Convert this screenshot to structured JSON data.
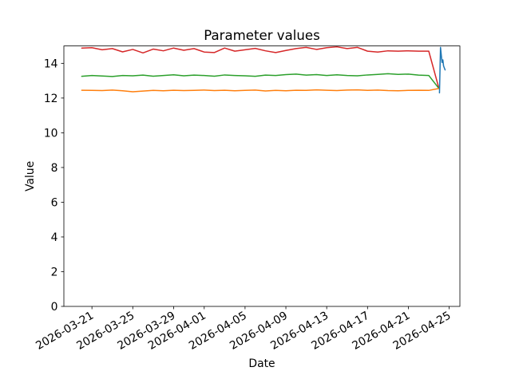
{
  "figure": {
    "background_color": "#ffffff",
    "plot_background_color": "#ffffff",
    "spine_color": "#000000"
  },
  "chart_data": {
    "type": "line",
    "title": "Parameter values",
    "xlabel": "Date",
    "ylabel": "Value",
    "grid": false,
    "legend": "none",
    "start_date": "2026-03-20",
    "x_unit": "days since 2026-03-20",
    "xlim_days": [
      -1.75,
      37.05
    ],
    "ylim": [
      0,
      15
    ],
    "y_ticks": [
      0,
      2,
      4,
      6,
      8,
      10,
      12,
      14
    ],
    "x_ticks": [
      {
        "day": 1,
        "label": "2026-03-21"
      },
      {
        "day": 5,
        "label": "2026-03-25"
      },
      {
        "day": 9,
        "label": "2026-03-29"
      },
      {
        "day": 12,
        "label": "2026-04-01"
      },
      {
        "day": 16,
        "label": "2026-04-05"
      },
      {
        "day": 20,
        "label": "2026-04-09"
      },
      {
        "day": 24,
        "label": "2026-04-13"
      },
      {
        "day": 28,
        "label": "2026-04-17"
      },
      {
        "day": 32,
        "label": "2026-04-21"
      },
      {
        "day": 36,
        "label": "2026-04-25"
      }
    ],
    "series": [
      {
        "name": "red-line",
        "color": "#d62728",
        "x": [
          0,
          1,
          2,
          3,
          4,
          5,
          6,
          7,
          8,
          9,
          10,
          11,
          12,
          13,
          14,
          15,
          16,
          17,
          18,
          19,
          20,
          21,
          22,
          23,
          24,
          25,
          26,
          27,
          28,
          29,
          30,
          31,
          32,
          33,
          34,
          35
        ],
        "values": [
          14.88,
          14.9,
          14.78,
          14.85,
          14.66,
          14.8,
          14.6,
          14.82,
          14.72,
          14.88,
          14.75,
          14.85,
          14.65,
          14.62,
          14.88,
          14.7,
          14.78,
          14.86,
          14.72,
          14.62,
          14.74,
          14.85,
          14.92,
          14.8,
          14.9,
          14.95,
          14.85,
          14.92,
          14.7,
          14.65,
          14.72,
          14.7,
          14.72,
          14.7,
          14.7,
          12.55
        ]
      },
      {
        "name": "green-line",
        "color": "#2ca02c",
        "x": [
          0,
          1,
          2,
          3,
          4,
          5,
          6,
          7,
          8,
          9,
          10,
          11,
          12,
          13,
          14,
          15,
          16,
          17,
          18,
          19,
          20,
          21,
          22,
          23,
          24,
          25,
          26,
          27,
          28,
          29,
          30,
          31,
          32,
          33,
          34,
          35
        ],
        "values": [
          13.25,
          13.3,
          13.27,
          13.24,
          13.3,
          13.28,
          13.32,
          13.26,
          13.3,
          13.34,
          13.28,
          13.32,
          13.3,
          13.26,
          13.33,
          13.3,
          13.28,
          13.25,
          13.32,
          13.3,
          13.35,
          13.38,
          13.32,
          13.35,
          13.3,
          13.34,
          13.3,
          13.28,
          13.33,
          13.36,
          13.4,
          13.36,
          13.38,
          13.32,
          13.3,
          12.55
        ]
      },
      {
        "name": "orange-line",
        "color": "#ff7f0e",
        "x": [
          0,
          1,
          2,
          3,
          4,
          5,
          6,
          7,
          8,
          9,
          10,
          11,
          12,
          13,
          14,
          15,
          16,
          17,
          18,
          19,
          20,
          21,
          22,
          23,
          24,
          25,
          26,
          27,
          28,
          29,
          30,
          31,
          32,
          33,
          34,
          35
        ],
        "values": [
          12.45,
          12.44,
          12.43,
          12.46,
          12.42,
          12.36,
          12.4,
          12.44,
          12.42,
          12.45,
          12.43,
          12.44,
          12.46,
          12.43,
          12.45,
          12.42,
          12.44,
          12.46,
          12.41,
          12.44,
          12.42,
          12.45,
          12.44,
          12.47,
          12.45,
          12.43,
          12.46,
          12.47,
          12.44,
          12.46,
          12.43,
          12.42,
          12.44,
          12.45,
          12.44,
          12.55
        ]
      },
      {
        "name": "blue-line",
        "color": "#1f77b4",
        "x": [
          35.05,
          35.15,
          35.3,
          35.38,
          35.45,
          35.6
        ],
        "values": [
          12.3,
          14.92,
          14.05,
          14.2,
          13.85,
          13.62
        ]
      }
    ]
  }
}
